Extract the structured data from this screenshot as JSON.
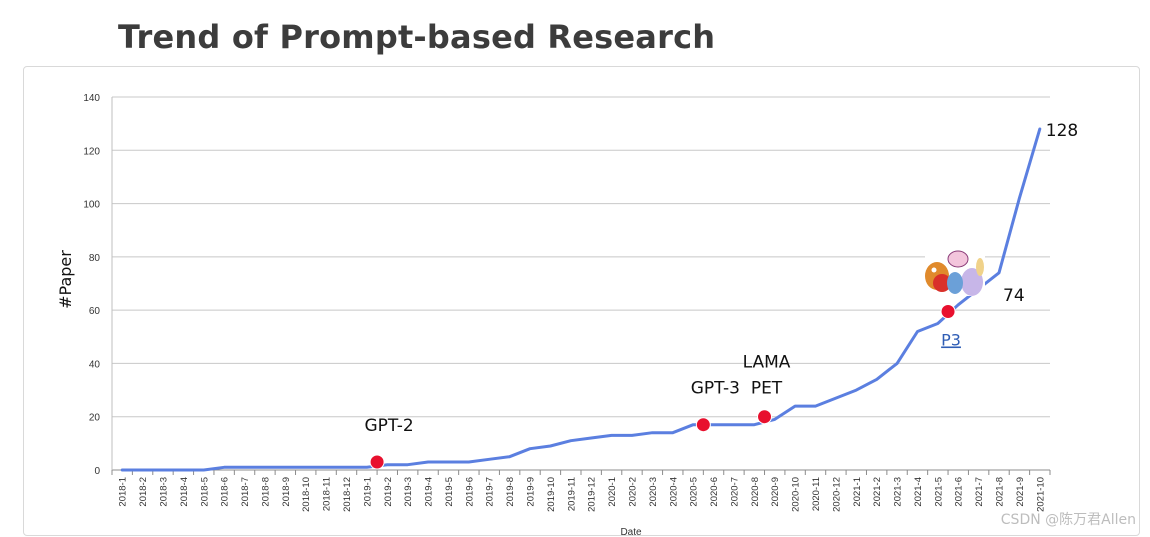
{
  "title": "Trend of Prompt-based Research",
  "watermark": "CSDN @陈万君Allen",
  "chart_data": {
    "type": "line",
    "title": "Trend of Prompt-based Research",
    "xlabel": "Date",
    "ylabel": "#Paper",
    "ylim": [
      0,
      140
    ],
    "yticks": [
      0,
      20,
      40,
      60,
      80,
      100,
      120,
      140
    ],
    "grid": true,
    "categories": [
      "2018-1",
      "2018-2",
      "2018-3",
      "2018-4",
      "2018-5",
      "2018-6",
      "2018-7",
      "2018-8",
      "2018-9",
      "2018-10",
      "2018-11",
      "2018-12",
      "2019-1",
      "2019-2",
      "2019-3",
      "2019-4",
      "2019-5",
      "2019-6",
      "2019-7",
      "2019-8",
      "2019-9",
      "2019-10",
      "2019-11",
      "2019-12",
      "2020-1",
      "2020-2",
      "2020-3",
      "2020-4",
      "2020-5",
      "2020-6",
      "2020-7",
      "2020-8",
      "2020-9",
      "2020-10",
      "2020-11",
      "2020-12",
      "2021-1",
      "2021-2",
      "2021-3",
      "2021-4",
      "2021-5",
      "2021-6",
      "2021-7",
      "2021-8",
      "2021-9",
      "2021-10"
    ],
    "series": [
      {
        "values": [
          0,
          0,
          0,
          0,
          0,
          1,
          1,
          1,
          1,
          1,
          1,
          1,
          1,
          2,
          2,
          3,
          3,
          3,
          4,
          5,
          8,
          9,
          11,
          12,
          13,
          13,
          14,
          14,
          17,
          17,
          17,
          17,
          19,
          24,
          24,
          27,
          30,
          34,
          40,
          52,
          55,
          62,
          68,
          74,
          102,
          128
        ],
        "color": "#5b7fe0"
      }
    ],
    "markers": [
      {
        "label": "GPT-2",
        "category": "2019-2",
        "value": 3
      },
      {
        "label": "GPT-3",
        "category": "2020-6",
        "value": 17
      },
      {
        "label": "LAMA",
        "label2": "PET",
        "category": "2020-9",
        "value": 20
      },
      {
        "label": "P3",
        "category": "2021-6",
        "value": 59.5
      }
    ],
    "marker_color": "#e8102e",
    "value_labels": [
      {
        "text": "74",
        "category": "2021-8",
        "value": 74
      },
      {
        "text": "128",
        "category": "2021-10",
        "value": 128
      }
    ]
  }
}
